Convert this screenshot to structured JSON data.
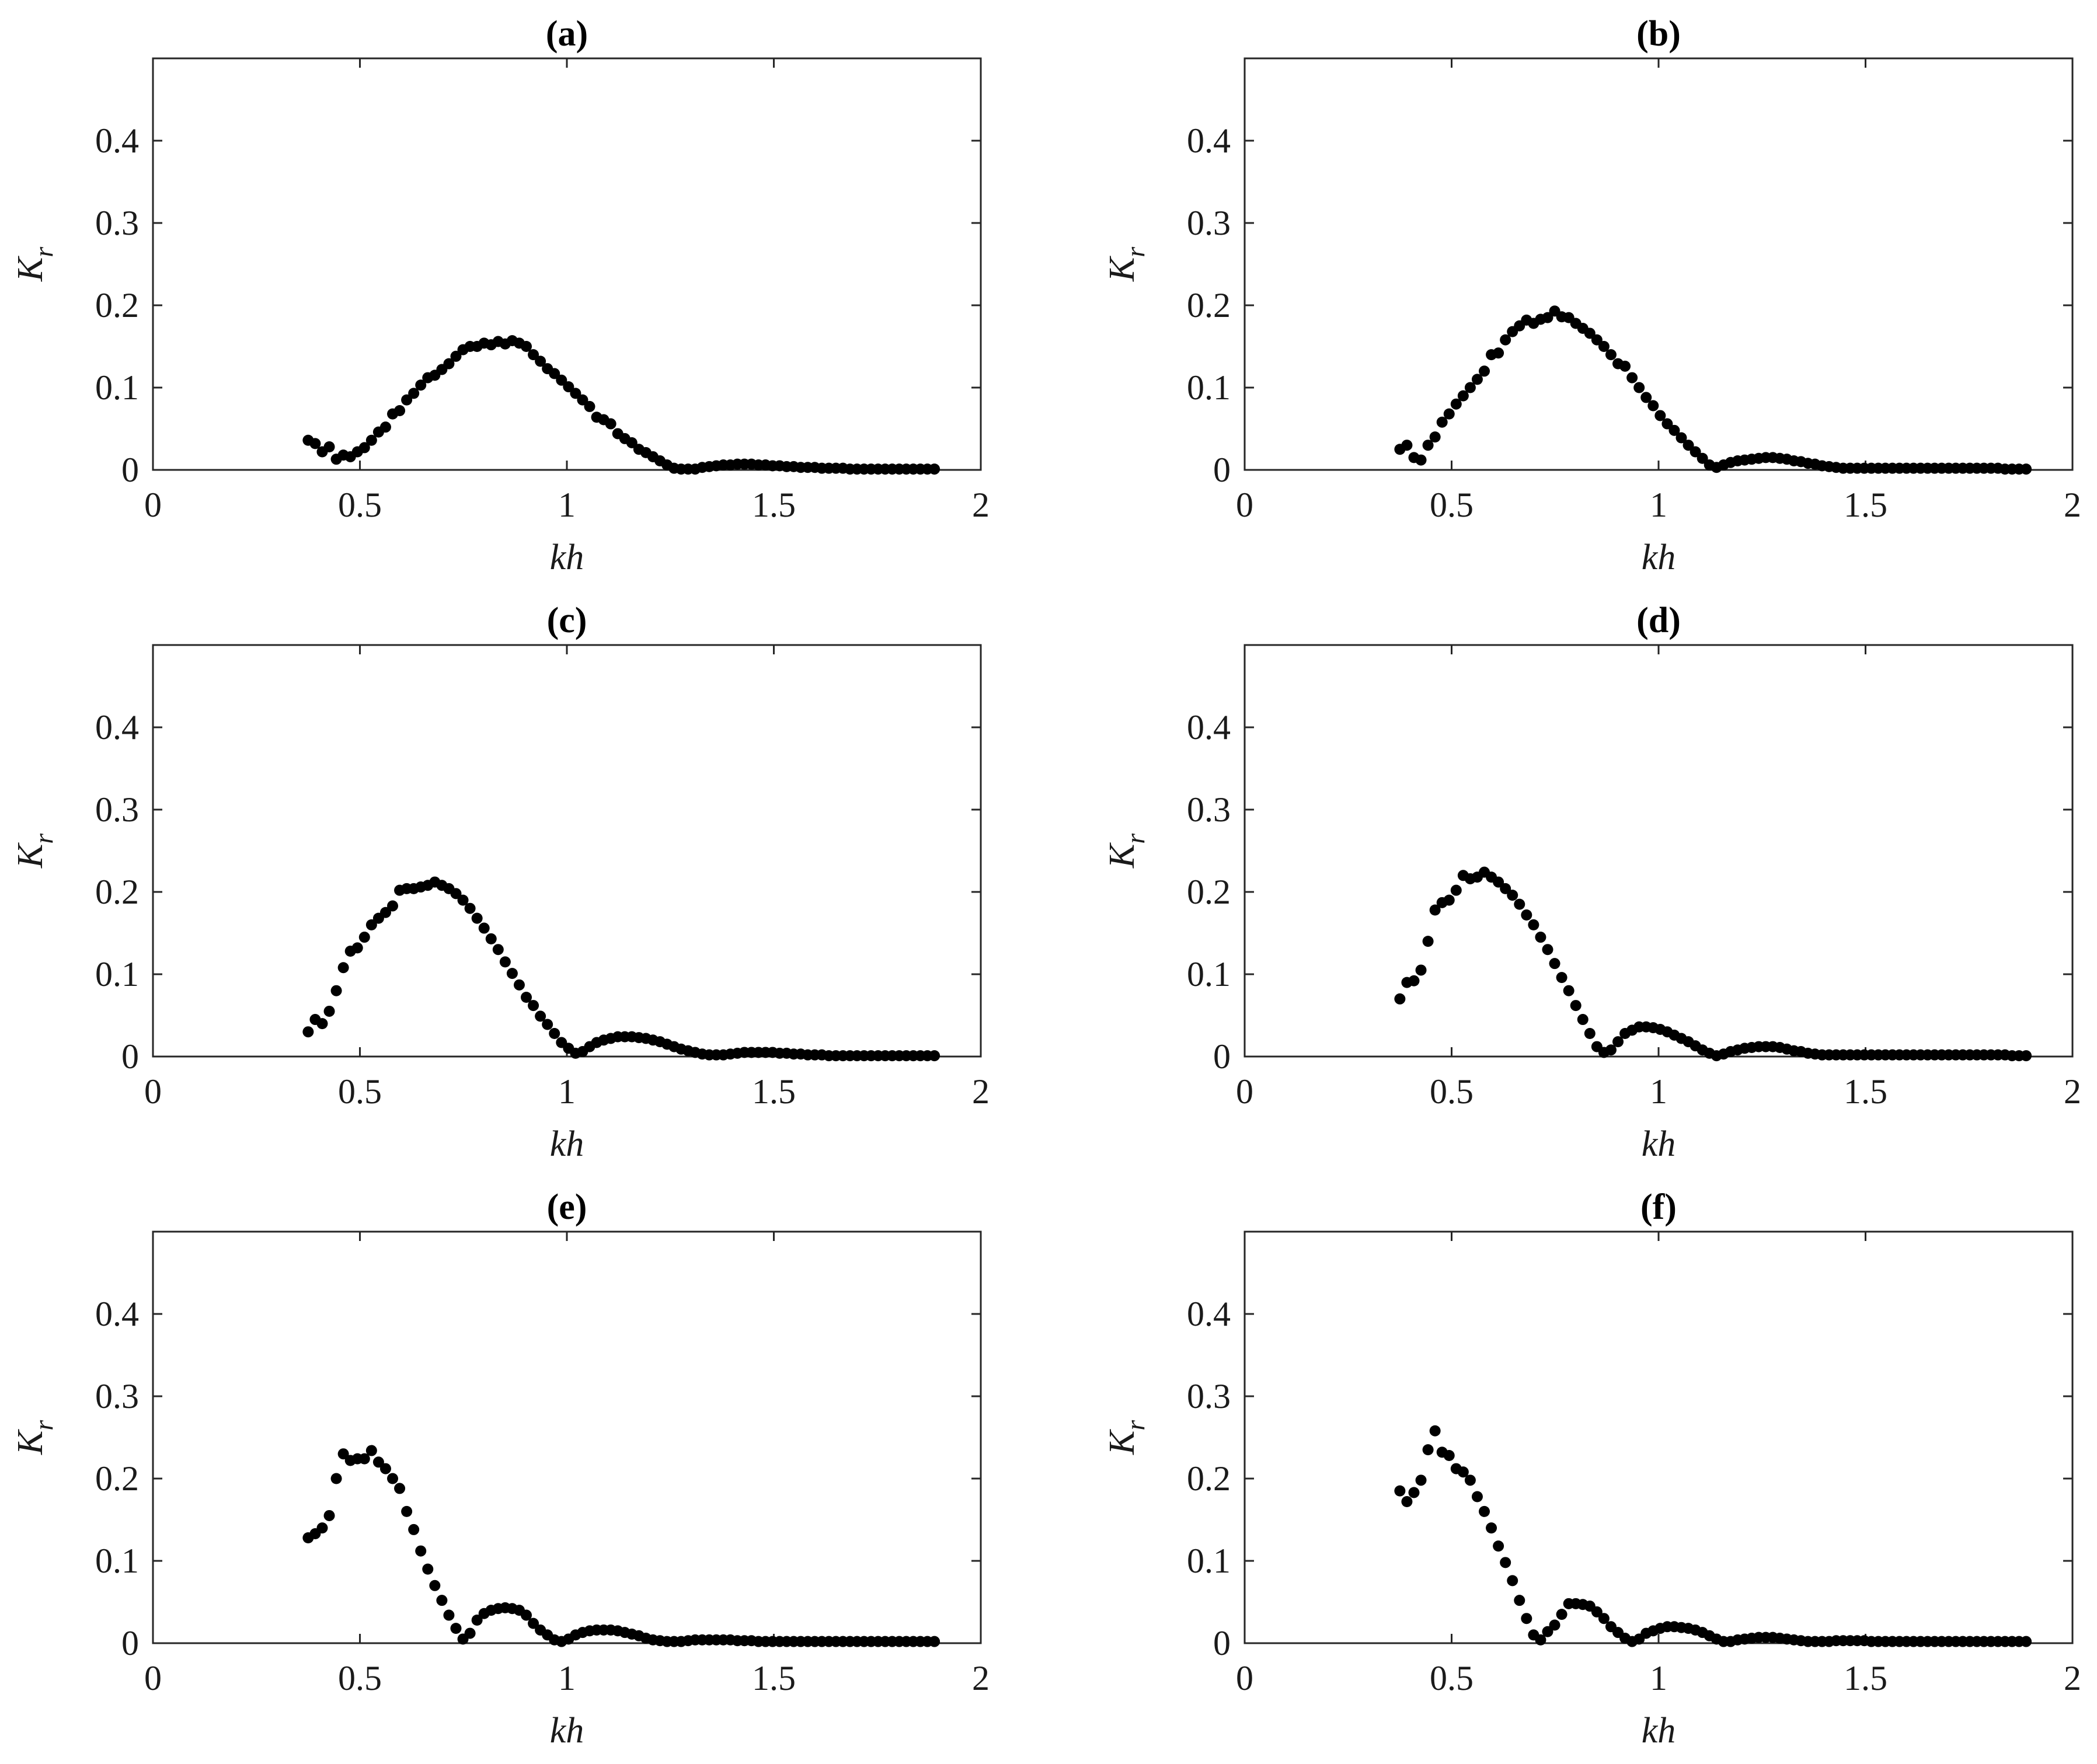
{
  "chart_data": [
    {
      "type": "scatter",
      "title": "(a)",
      "xlabel": "kh",
      "ylabel": "K",
      "ylabel_subscript": "r",
      "xlim": [
        0,
        2
      ],
      "ylim": [
        0,
        0.5
      ],
      "xticks": [
        "0",
        "0.5",
        "1",
        "1.5",
        "2"
      ],
      "yticks": [
        "0",
        "0.1",
        "0.2",
        "0.3",
        "0.4"
      ],
      "grid": false,
      "x": [
        0.375,
        0.392,
        0.409,
        0.426,
        0.443,
        0.46,
        0.477,
        0.494,
        0.511,
        0.528,
        0.545,
        0.562,
        0.579,
        0.596,
        0.613,
        0.63,
        0.647,
        0.664,
        0.681,
        0.698,
        0.715,
        0.732,
        0.749,
        0.766,
        0.783,
        0.8,
        0.817,
        0.834,
        0.851,
        0.868,
        0.885,
        0.902,
        0.919,
        0.936,
        0.953,
        0.97,
        0.987,
        1.004,
        1.021,
        1.038,
        1.055,
        1.072,
        1.089,
        1.106,
        1.123,
        1.14,
        1.157,
        1.174,
        1.191,
        1.208,
        1.225,
        1.242,
        1.259,
        1.276,
        1.293,
        1.31,
        1.327,
        1.344,
        1.361,
        1.378,
        1.395,
        1.412,
        1.429,
        1.446,
        1.463,
        1.48,
        1.497,
        1.514,
        1.531,
        1.548,
        1.565,
        1.582,
        1.599,
        1.616,
        1.633,
        1.65,
        1.667,
        1.684,
        1.701,
        1.718,
        1.735,
        1.752,
        1.769,
        1.786,
        1.803,
        1.82,
        1.837,
        1.854,
        1.871,
        1.888
      ],
      "y": [
        0.036,
        0.032,
        0.022,
        0.028,
        0.013,
        0.018,
        0.016,
        0.022,
        0.027,
        0.036,
        0.046,
        0.052,
        0.068,
        0.072,
        0.085,
        0.093,
        0.103,
        0.112,
        0.115,
        0.122,
        0.129,
        0.138,
        0.146,
        0.15,
        0.15,
        0.154,
        0.152,
        0.156,
        0.153,
        0.157,
        0.154,
        0.15,
        0.14,
        0.132,
        0.123,
        0.117,
        0.109,
        0.101,
        0.093,
        0.085,
        0.077,
        0.064,
        0.061,
        0.056,
        0.044,
        0.038,
        0.033,
        0.025,
        0.021,
        0.016,
        0.011,
        0.006,
        0.002,
        0.001,
        0.001,
        0.001,
        0.003,
        0.004,
        0.005,
        0.006,
        0.006,
        0.007,
        0.007,
        0.007,
        0.006,
        0.006,
        0.005,
        0.005,
        0.004,
        0.004,
        0.003,
        0.003,
        0.003,
        0.002,
        0.002,
        0.002,
        0.002,
        0.001,
        0.001,
        0.001,
        0.001,
        0.001,
        0.001,
        0.001,
        0.001,
        0.001,
        0.001,
        0.001,
        0.001,
        0.001
      ]
    },
    {
      "type": "scatter",
      "title": "(b)",
      "xlabel": "kh",
      "ylabel": "K",
      "ylabel_subscript": "r",
      "xlim": [
        0,
        2
      ],
      "ylim": [
        0,
        0.5
      ],
      "xticks": [
        "0",
        "0.5",
        "1",
        "1.5",
        "2"
      ],
      "yticks": [
        "0",
        "0.1",
        "0.2",
        "0.3",
        "0.4"
      ],
      "grid": false,
      "x": [
        0.375,
        0.392,
        0.409,
        0.426,
        0.443,
        0.46,
        0.477,
        0.494,
        0.511,
        0.528,
        0.545,
        0.562,
        0.579,
        0.596,
        0.613,
        0.63,
        0.647,
        0.664,
        0.681,
        0.698,
        0.715,
        0.732,
        0.749,
        0.766,
        0.783,
        0.8,
        0.817,
        0.834,
        0.851,
        0.868,
        0.885,
        0.902,
        0.919,
        0.936,
        0.953,
        0.97,
        0.987,
        1.004,
        1.021,
        1.038,
        1.055,
        1.072,
        1.089,
        1.106,
        1.123,
        1.14,
        1.157,
        1.174,
        1.191,
        1.208,
        1.225,
        1.242,
        1.259,
        1.276,
        1.293,
        1.31,
        1.327,
        1.344,
        1.361,
        1.378,
        1.395,
        1.412,
        1.429,
        1.446,
        1.463,
        1.48,
        1.497,
        1.514,
        1.531,
        1.548,
        1.565,
        1.582,
        1.599,
        1.616,
        1.633,
        1.65,
        1.667,
        1.684,
        1.701,
        1.718,
        1.735,
        1.752,
        1.769,
        1.786,
        1.803,
        1.82,
        1.837,
        1.854,
        1.871,
        1.888
      ],
      "y": [
        0.025,
        0.03,
        0.015,
        0.012,
        0.03,
        0.04,
        0.058,
        0.068,
        0.08,
        0.09,
        0.1,
        0.11,
        0.12,
        0.14,
        0.142,
        0.158,
        0.168,
        0.175,
        0.182,
        0.178,
        0.183,
        0.185,
        0.193,
        0.186,
        0.185,
        0.178,
        0.172,
        0.166,
        0.158,
        0.15,
        0.14,
        0.129,
        0.126,
        0.112,
        0.1,
        0.088,
        0.078,
        0.066,
        0.056,
        0.048,
        0.039,
        0.03,
        0.022,
        0.014,
        0.006,
        0.003,
        0.006,
        0.009,
        0.011,
        0.012,
        0.013,
        0.014,
        0.015,
        0.015,
        0.014,
        0.013,
        0.011,
        0.01,
        0.008,
        0.007,
        0.005,
        0.004,
        0.003,
        0.002,
        0.002,
        0.002,
        0.002,
        0.002,
        0.002,
        0.002,
        0.002,
        0.002,
        0.002,
        0.002,
        0.002,
        0.002,
        0.002,
        0.002,
        0.002,
        0.002,
        0.002,
        0.002,
        0.002,
        0.002,
        0.002,
        0.002,
        0.001,
        0.001,
        0.001,
        0.001
      ]
    },
    {
      "type": "scatter",
      "title": "(c)",
      "xlabel": "kh",
      "ylabel": "K",
      "ylabel_subscript": "r",
      "xlim": [
        0,
        2
      ],
      "ylim": [
        0,
        0.5
      ],
      "xticks": [
        "0",
        "0.5",
        "1",
        "1.5",
        "2"
      ],
      "yticks": [
        "0",
        "0.1",
        "0.2",
        "0.3",
        "0.4"
      ],
      "grid": false,
      "x": [
        0.375,
        0.392,
        0.409,
        0.426,
        0.443,
        0.46,
        0.477,
        0.494,
        0.511,
        0.528,
        0.545,
        0.562,
        0.579,
        0.596,
        0.613,
        0.63,
        0.647,
        0.664,
        0.681,
        0.698,
        0.715,
        0.732,
        0.749,
        0.766,
        0.783,
        0.8,
        0.817,
        0.834,
        0.851,
        0.868,
        0.885,
        0.902,
        0.919,
        0.936,
        0.953,
        0.97,
        0.987,
        1.004,
        1.021,
        1.038,
        1.055,
        1.072,
        1.089,
        1.106,
        1.123,
        1.14,
        1.157,
        1.174,
        1.191,
        1.208,
        1.225,
        1.242,
        1.259,
        1.276,
        1.293,
        1.31,
        1.327,
        1.344,
        1.361,
        1.378,
        1.395,
        1.412,
        1.429,
        1.446,
        1.463,
        1.48,
        1.497,
        1.514,
        1.531,
        1.548,
        1.565,
        1.582,
        1.599,
        1.616,
        1.633,
        1.65,
        1.667,
        1.684,
        1.701,
        1.718,
        1.735,
        1.752,
        1.769,
        1.786,
        1.803,
        1.82,
        1.837,
        1.854,
        1.871,
        1.888
      ],
      "y": [
        0.03,
        0.045,
        0.04,
        0.055,
        0.08,
        0.108,
        0.128,
        0.132,
        0.145,
        0.16,
        0.168,
        0.175,
        0.183,
        0.202,
        0.204,
        0.204,
        0.206,
        0.208,
        0.212,
        0.208,
        0.204,
        0.198,
        0.19,
        0.18,
        0.168,
        0.156,
        0.143,
        0.13,
        0.115,
        0.101,
        0.087,
        0.072,
        0.062,
        0.049,
        0.039,
        0.028,
        0.017,
        0.01,
        0.004,
        0.006,
        0.012,
        0.017,
        0.02,
        0.022,
        0.024,
        0.024,
        0.024,
        0.023,
        0.022,
        0.02,
        0.018,
        0.015,
        0.012,
        0.009,
        0.007,
        0.005,
        0.003,
        0.002,
        0.002,
        0.002,
        0.003,
        0.004,
        0.005,
        0.005,
        0.005,
        0.005,
        0.005,
        0.004,
        0.004,
        0.003,
        0.003,
        0.002,
        0.002,
        0.002,
        0.001,
        0.001,
        0.001,
        0.001,
        0.001,
        0.001,
        0.001,
        0.001,
        0.001,
        0.001,
        0.001,
        0.001,
        0.001,
        0.001,
        0.001,
        0.001
      ]
    },
    {
      "type": "scatter",
      "title": "(d)",
      "xlabel": "kh",
      "ylabel": "K",
      "ylabel_subscript": "r",
      "xlim": [
        0,
        2
      ],
      "ylim": [
        0,
        0.5
      ],
      "xticks": [
        "0",
        "0.5",
        "1",
        "1.5",
        "2"
      ],
      "yticks": [
        "0",
        "0.1",
        "0.2",
        "0.3",
        "0.4"
      ],
      "grid": false,
      "x": [
        0.375,
        0.392,
        0.409,
        0.426,
        0.443,
        0.46,
        0.477,
        0.494,
        0.511,
        0.528,
        0.545,
        0.562,
        0.579,
        0.596,
        0.613,
        0.63,
        0.647,
        0.664,
        0.681,
        0.698,
        0.715,
        0.732,
        0.749,
        0.766,
        0.783,
        0.8,
        0.817,
        0.834,
        0.851,
        0.868,
        0.885,
        0.902,
        0.919,
        0.936,
        0.953,
        0.97,
        0.987,
        1.004,
        1.021,
        1.038,
        1.055,
        1.072,
        1.089,
        1.106,
        1.123,
        1.14,
        1.157,
        1.174,
        1.191,
        1.208,
        1.225,
        1.242,
        1.259,
        1.276,
        1.293,
        1.31,
        1.327,
        1.344,
        1.361,
        1.378,
        1.395,
        1.412,
        1.429,
        1.446,
        1.463,
        1.48,
        1.497,
        1.514,
        1.531,
        1.548,
        1.565,
        1.582,
        1.599,
        1.616,
        1.633,
        1.65,
        1.667,
        1.684,
        1.701,
        1.718,
        1.735,
        1.752,
        1.769,
        1.786,
        1.803,
        1.82,
        1.837,
        1.854,
        1.871,
        1.888
      ],
      "y": [
        0.07,
        0.09,
        0.092,
        0.105,
        0.14,
        0.178,
        0.187,
        0.19,
        0.202,
        0.22,
        0.216,
        0.218,
        0.224,
        0.218,
        0.212,
        0.204,
        0.196,
        0.185,
        0.172,
        0.16,
        0.145,
        0.13,
        0.113,
        0.096,
        0.08,
        0.062,
        0.045,
        0.028,
        0.012,
        0.005,
        0.008,
        0.018,
        0.028,
        0.032,
        0.036,
        0.036,
        0.035,
        0.033,
        0.03,
        0.026,
        0.022,
        0.018,
        0.013,
        0.008,
        0.004,
        0.001,
        0.003,
        0.006,
        0.008,
        0.01,
        0.011,
        0.012,
        0.012,
        0.012,
        0.011,
        0.009,
        0.007,
        0.006,
        0.004,
        0.003,
        0.002,
        0.002,
        0.002,
        0.002,
        0.002,
        0.002,
        0.002,
        0.002,
        0.002,
        0.002,
        0.002,
        0.002,
        0.002,
        0.002,
        0.002,
        0.002,
        0.002,
        0.002,
        0.002,
        0.002,
        0.002,
        0.002,
        0.002,
        0.002,
        0.002,
        0.002,
        0.002,
        0.001,
        0.001,
        0.001
      ]
    },
    {
      "type": "scatter",
      "title": "(e)",
      "xlabel": "kh",
      "ylabel": "K",
      "ylabel_subscript": "r",
      "xlim": [
        0,
        2
      ],
      "ylim": [
        0,
        0.5
      ],
      "xticks": [
        "0",
        "0.5",
        "1",
        "1.5",
        "2"
      ],
      "yticks": [
        "0",
        "0.1",
        "0.2",
        "0.3",
        "0.4"
      ],
      "grid": false,
      "x": [
        0.375,
        0.392,
        0.409,
        0.426,
        0.443,
        0.46,
        0.477,
        0.494,
        0.511,
        0.528,
        0.545,
        0.562,
        0.579,
        0.596,
        0.613,
        0.63,
        0.647,
        0.664,
        0.681,
        0.698,
        0.715,
        0.732,
        0.749,
        0.766,
        0.783,
        0.8,
        0.817,
        0.834,
        0.851,
        0.868,
        0.885,
        0.902,
        0.919,
        0.936,
        0.953,
        0.97,
        0.987,
        1.004,
        1.021,
        1.038,
        1.055,
        1.072,
        1.089,
        1.106,
        1.123,
        1.14,
        1.157,
        1.174,
        1.191,
        1.208,
        1.225,
        1.242,
        1.259,
        1.276,
        1.293,
        1.31,
        1.327,
        1.344,
        1.361,
        1.378,
        1.395,
        1.412,
        1.429,
        1.446,
        1.463,
        1.48,
        1.497,
        1.514,
        1.531,
        1.548,
        1.565,
        1.582,
        1.599,
        1.616,
        1.633,
        1.65,
        1.667,
        1.684,
        1.701,
        1.718,
        1.735,
        1.752,
        1.769,
        1.786,
        1.803,
        1.82,
        1.837,
        1.854,
        1.871,
        1.888
      ],
      "y": [
        0.128,
        0.133,
        0.14,
        0.155,
        0.2,
        0.23,
        0.222,
        0.224,
        0.224,
        0.234,
        0.22,
        0.212,
        0.2,
        0.188,
        0.16,
        0.138,
        0.112,
        0.09,
        0.07,
        0.052,
        0.034,
        0.018,
        0.005,
        0.012,
        0.028,
        0.036,
        0.04,
        0.042,
        0.043,
        0.042,
        0.04,
        0.034,
        0.024,
        0.016,
        0.01,
        0.004,
        0.002,
        0.005,
        0.01,
        0.013,
        0.015,
        0.016,
        0.016,
        0.016,
        0.015,
        0.013,
        0.011,
        0.009,
        0.006,
        0.004,
        0.003,
        0.002,
        0.002,
        0.002,
        0.003,
        0.004,
        0.004,
        0.004,
        0.004,
        0.004,
        0.004,
        0.003,
        0.003,
        0.003,
        0.002,
        0.002,
        0.002,
        0.002,
        0.002,
        0.002,
        0.002,
        0.002,
        0.002,
        0.002,
        0.002,
        0.002,
        0.002,
        0.002,
        0.002,
        0.002,
        0.002,
        0.002,
        0.002,
        0.002,
        0.002,
        0.002,
        0.002,
        0.002,
        0.002,
        0.002
      ]
    },
    {
      "type": "scatter",
      "title": "(f)",
      "xlabel": "kh",
      "ylabel": "K",
      "ylabel_subscript": "r",
      "xlim": [
        0,
        2
      ],
      "ylim": [
        0,
        0.5
      ],
      "xticks": [
        "0",
        "0.5",
        "1",
        "1.5",
        "2"
      ],
      "yticks": [
        "0",
        "0.1",
        "0.2",
        "0.3",
        "0.4"
      ],
      "grid": false,
      "x": [
        0.375,
        0.392,
        0.409,
        0.426,
        0.443,
        0.46,
        0.477,
        0.494,
        0.511,
        0.528,
        0.545,
        0.562,
        0.579,
        0.596,
        0.613,
        0.63,
        0.647,
        0.664,
        0.681,
        0.698,
        0.715,
        0.732,
        0.749,
        0.766,
        0.783,
        0.8,
        0.817,
        0.834,
        0.851,
        0.868,
        0.885,
        0.902,
        0.919,
        0.936,
        0.953,
        0.97,
        0.987,
        1.004,
        1.021,
        1.038,
        1.055,
        1.072,
        1.089,
        1.106,
        1.123,
        1.14,
        1.157,
        1.174,
        1.191,
        1.208,
        1.225,
        1.242,
        1.259,
        1.276,
        1.293,
        1.31,
        1.327,
        1.344,
        1.361,
        1.378,
        1.395,
        1.412,
        1.429,
        1.446,
        1.463,
        1.48,
        1.497,
        1.514,
        1.531,
        1.548,
        1.565,
        1.582,
        1.599,
        1.616,
        1.633,
        1.65,
        1.667,
        1.684,
        1.701,
        1.718,
        1.735,
        1.752,
        1.769,
        1.786,
        1.803,
        1.82,
        1.837,
        1.854,
        1.871,
        1.888
      ],
      "y": [
        0.185,
        0.172,
        0.183,
        0.198,
        0.235,
        0.258,
        0.232,
        0.228,
        0.212,
        0.208,
        0.198,
        0.178,
        0.16,
        0.14,
        0.118,
        0.098,
        0.076,
        0.052,
        0.03,
        0.01,
        0.004,
        0.014,
        0.022,
        0.035,
        0.048,
        0.048,
        0.047,
        0.045,
        0.038,
        0.03,
        0.02,
        0.013,
        0.006,
        0.002,
        0.005,
        0.012,
        0.015,
        0.018,
        0.02,
        0.02,
        0.019,
        0.018,
        0.016,
        0.013,
        0.009,
        0.005,
        0.002,
        0.002,
        0.004,
        0.005,
        0.006,
        0.007,
        0.007,
        0.007,
        0.006,
        0.005,
        0.004,
        0.003,
        0.002,
        0.002,
        0.002,
        0.002,
        0.003,
        0.003,
        0.003,
        0.003,
        0.003,
        0.002,
        0.002,
        0.002,
        0.002,
        0.002,
        0.002,
        0.002,
        0.002,
        0.002,
        0.002,
        0.002,
        0.002,
        0.002,
        0.002,
        0.002,
        0.002,
        0.002,
        0.002,
        0.002,
        0.002,
        0.002,
        0.002,
        0.002
      ]
    }
  ]
}
